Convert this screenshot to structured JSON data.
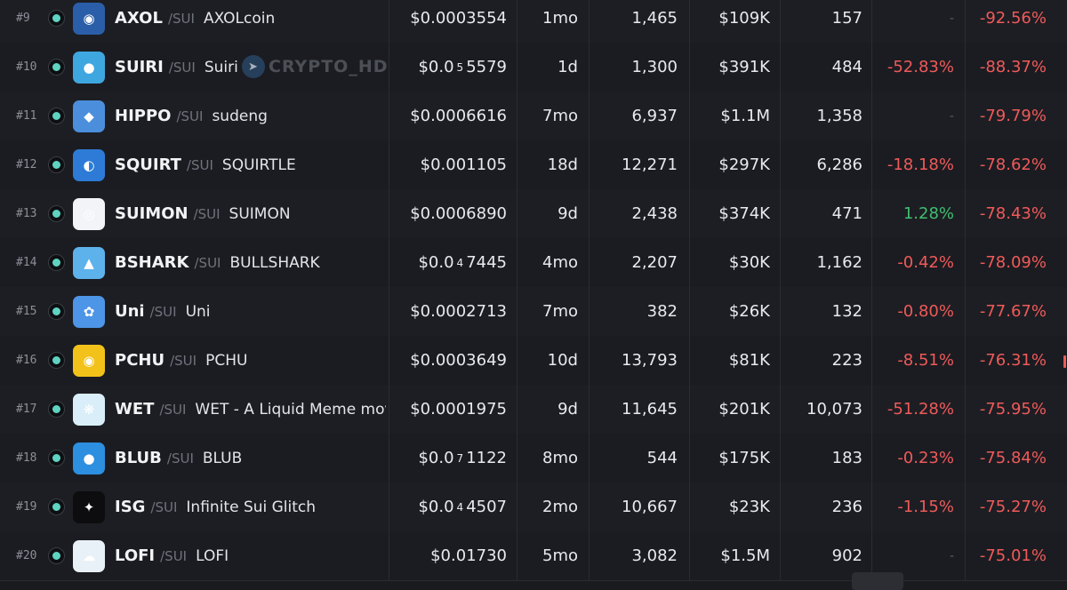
{
  "colors": {
    "negative": "#ef5a5a",
    "positive": "#3fbf6f",
    "chain_icon": "#5fd3c2",
    "background": "#1a1b1f"
  },
  "watermark": {
    "text": "CRYPTO_HD",
    "icon": "telegram-icon"
  },
  "rows": [
    {
      "rank": "#9",
      "symbol": "AXOL",
      "chain": "/SUI",
      "name": "AXOLcoin",
      "price": "$0.0003554",
      "price_parts": null,
      "age": "1mo",
      "txns": "1,465",
      "volume": "$109K",
      "makers": "157",
      "change1": "-",
      "change1_type": "none",
      "change2": "-92.56%",
      "logo_color": "#2a5ea8",
      "logo_glyph": "◉"
    },
    {
      "rank": "#10",
      "symbol": "SUIRI",
      "chain": "/SUI",
      "name": "Suiri",
      "price": "$0.0 5 5579",
      "price_parts": {
        "lead": "$0.0",
        "zeros": "5",
        "digits": "5579"
      },
      "age": "1d",
      "txns": "1,300",
      "volume": "$391K",
      "makers": "484",
      "change1": "-52.83%",
      "change1_type": "neg",
      "change2": "-88.37%",
      "logo_color": "#3fa7e0",
      "logo_glyph": "●"
    },
    {
      "rank": "#11",
      "symbol": "HIPPO",
      "chain": "/SUI",
      "name": "sudeng",
      "price": "$0.0006616",
      "price_parts": null,
      "age": "7mo",
      "txns": "6,937",
      "volume": "$1.1M",
      "makers": "1,358",
      "change1": "-",
      "change1_type": "none",
      "change2": "-79.79%",
      "logo_color": "#4b8fdc",
      "logo_glyph": "◆"
    },
    {
      "rank": "#12",
      "symbol": "SQUIRT",
      "chain": "/SUI",
      "name": "SQUIRTLE",
      "price": "$0.001105",
      "price_parts": null,
      "age": "18d",
      "txns": "12,271",
      "volume": "$297K",
      "makers": "6,286",
      "change1": "-18.18%",
      "change1_type": "neg",
      "change2": "-78.62%",
      "logo_color": "#2d7bd6",
      "logo_glyph": "◐"
    },
    {
      "rank": "#13",
      "symbol": "SUIMON",
      "chain": "/SUI",
      "name": "SUIMON",
      "price": "$0.0006890",
      "price_parts": null,
      "age": "9d",
      "txns": "2,438",
      "volume": "$374K",
      "makers": "471",
      "change1": "1.28%",
      "change1_type": "pos",
      "change2": "-78.43%",
      "logo_color": "#f2f4f8",
      "logo_glyph": "◎"
    },
    {
      "rank": "#14",
      "symbol": "BSHARK",
      "chain": "/SUI",
      "name": "BULLSHARK",
      "price": "$0.0 4 7445",
      "price_parts": {
        "lead": "$0.0",
        "zeros": "4",
        "digits": "7445"
      },
      "age": "4mo",
      "txns": "2,207",
      "volume": "$30K",
      "makers": "1,162",
      "change1": "-0.42%",
      "change1_type": "neg",
      "change2": "-78.09%",
      "logo_color": "#5db2ec",
      "logo_glyph": "▲"
    },
    {
      "rank": "#15",
      "symbol": "Uni",
      "chain": "/SUI",
      "name": "Uni",
      "price": "$0.0002713",
      "price_parts": null,
      "age": "7mo",
      "txns": "382",
      "volume": "$26K",
      "makers": "132",
      "change1": "-0.80%",
      "change1_type": "neg",
      "change2": "-77.67%",
      "logo_color": "#4d95e6",
      "logo_glyph": "✿"
    },
    {
      "rank": "#16",
      "symbol": "PCHU",
      "chain": "/SUI",
      "name": "PCHU",
      "price": "$0.0003649",
      "price_parts": null,
      "age": "10d",
      "txns": "13,793",
      "volume": "$81K",
      "makers": "223",
      "change1": "-8.51%",
      "change1_type": "neg",
      "change2": "-76.31%",
      "logo_color": "#f2c21a",
      "logo_glyph": "◉"
    },
    {
      "rank": "#17",
      "symbol": "WET",
      "chain": "/SUI",
      "name": "WET - A Liquid Meme mov",
      "price": "$0.0001975",
      "price_parts": null,
      "age": "9d",
      "txns": "11,645",
      "volume": "$201K",
      "makers": "10,073",
      "change1": "-51.28%",
      "change1_type": "neg",
      "change2": "-75.95%",
      "logo_color": "#d9eef8",
      "logo_glyph": "❋"
    },
    {
      "rank": "#18",
      "symbol": "BLUB",
      "chain": "/SUI",
      "name": "BLUB",
      "price": "$0.0 7 1122",
      "price_parts": {
        "lead": "$0.0",
        "zeros": "7",
        "digits": "1122"
      },
      "age": "8mo",
      "txns": "544",
      "volume": "$175K",
      "makers": "183",
      "change1": "-0.23%",
      "change1_type": "neg",
      "change2": "-75.84%",
      "logo_color": "#2c8fe0",
      "logo_glyph": "●"
    },
    {
      "rank": "#19",
      "symbol": "ISG",
      "chain": "/SUI",
      "name": "Infinite Sui Glitch",
      "price": "$0.0 4 4507",
      "price_parts": {
        "lead": "$0.0",
        "zeros": "4",
        "digits": "4507"
      },
      "age": "2mo",
      "txns": "10,667",
      "volume": "$23K",
      "makers": "236",
      "change1": "-1.15%",
      "change1_type": "neg",
      "change2": "-75.27%",
      "logo_color": "#0d0d0f",
      "logo_glyph": "✦"
    },
    {
      "rank": "#20",
      "symbol": "LOFI",
      "chain": "/SUI",
      "name": "LOFI",
      "price": "$0.01730",
      "price_parts": null,
      "age": "5mo",
      "txns": "3,082",
      "volume": "$1.5M",
      "makers": "902",
      "change1": "-",
      "change1_type": "none",
      "change2": "-75.01%",
      "logo_color": "#e9f1f8",
      "logo_glyph": "☁"
    }
  ]
}
